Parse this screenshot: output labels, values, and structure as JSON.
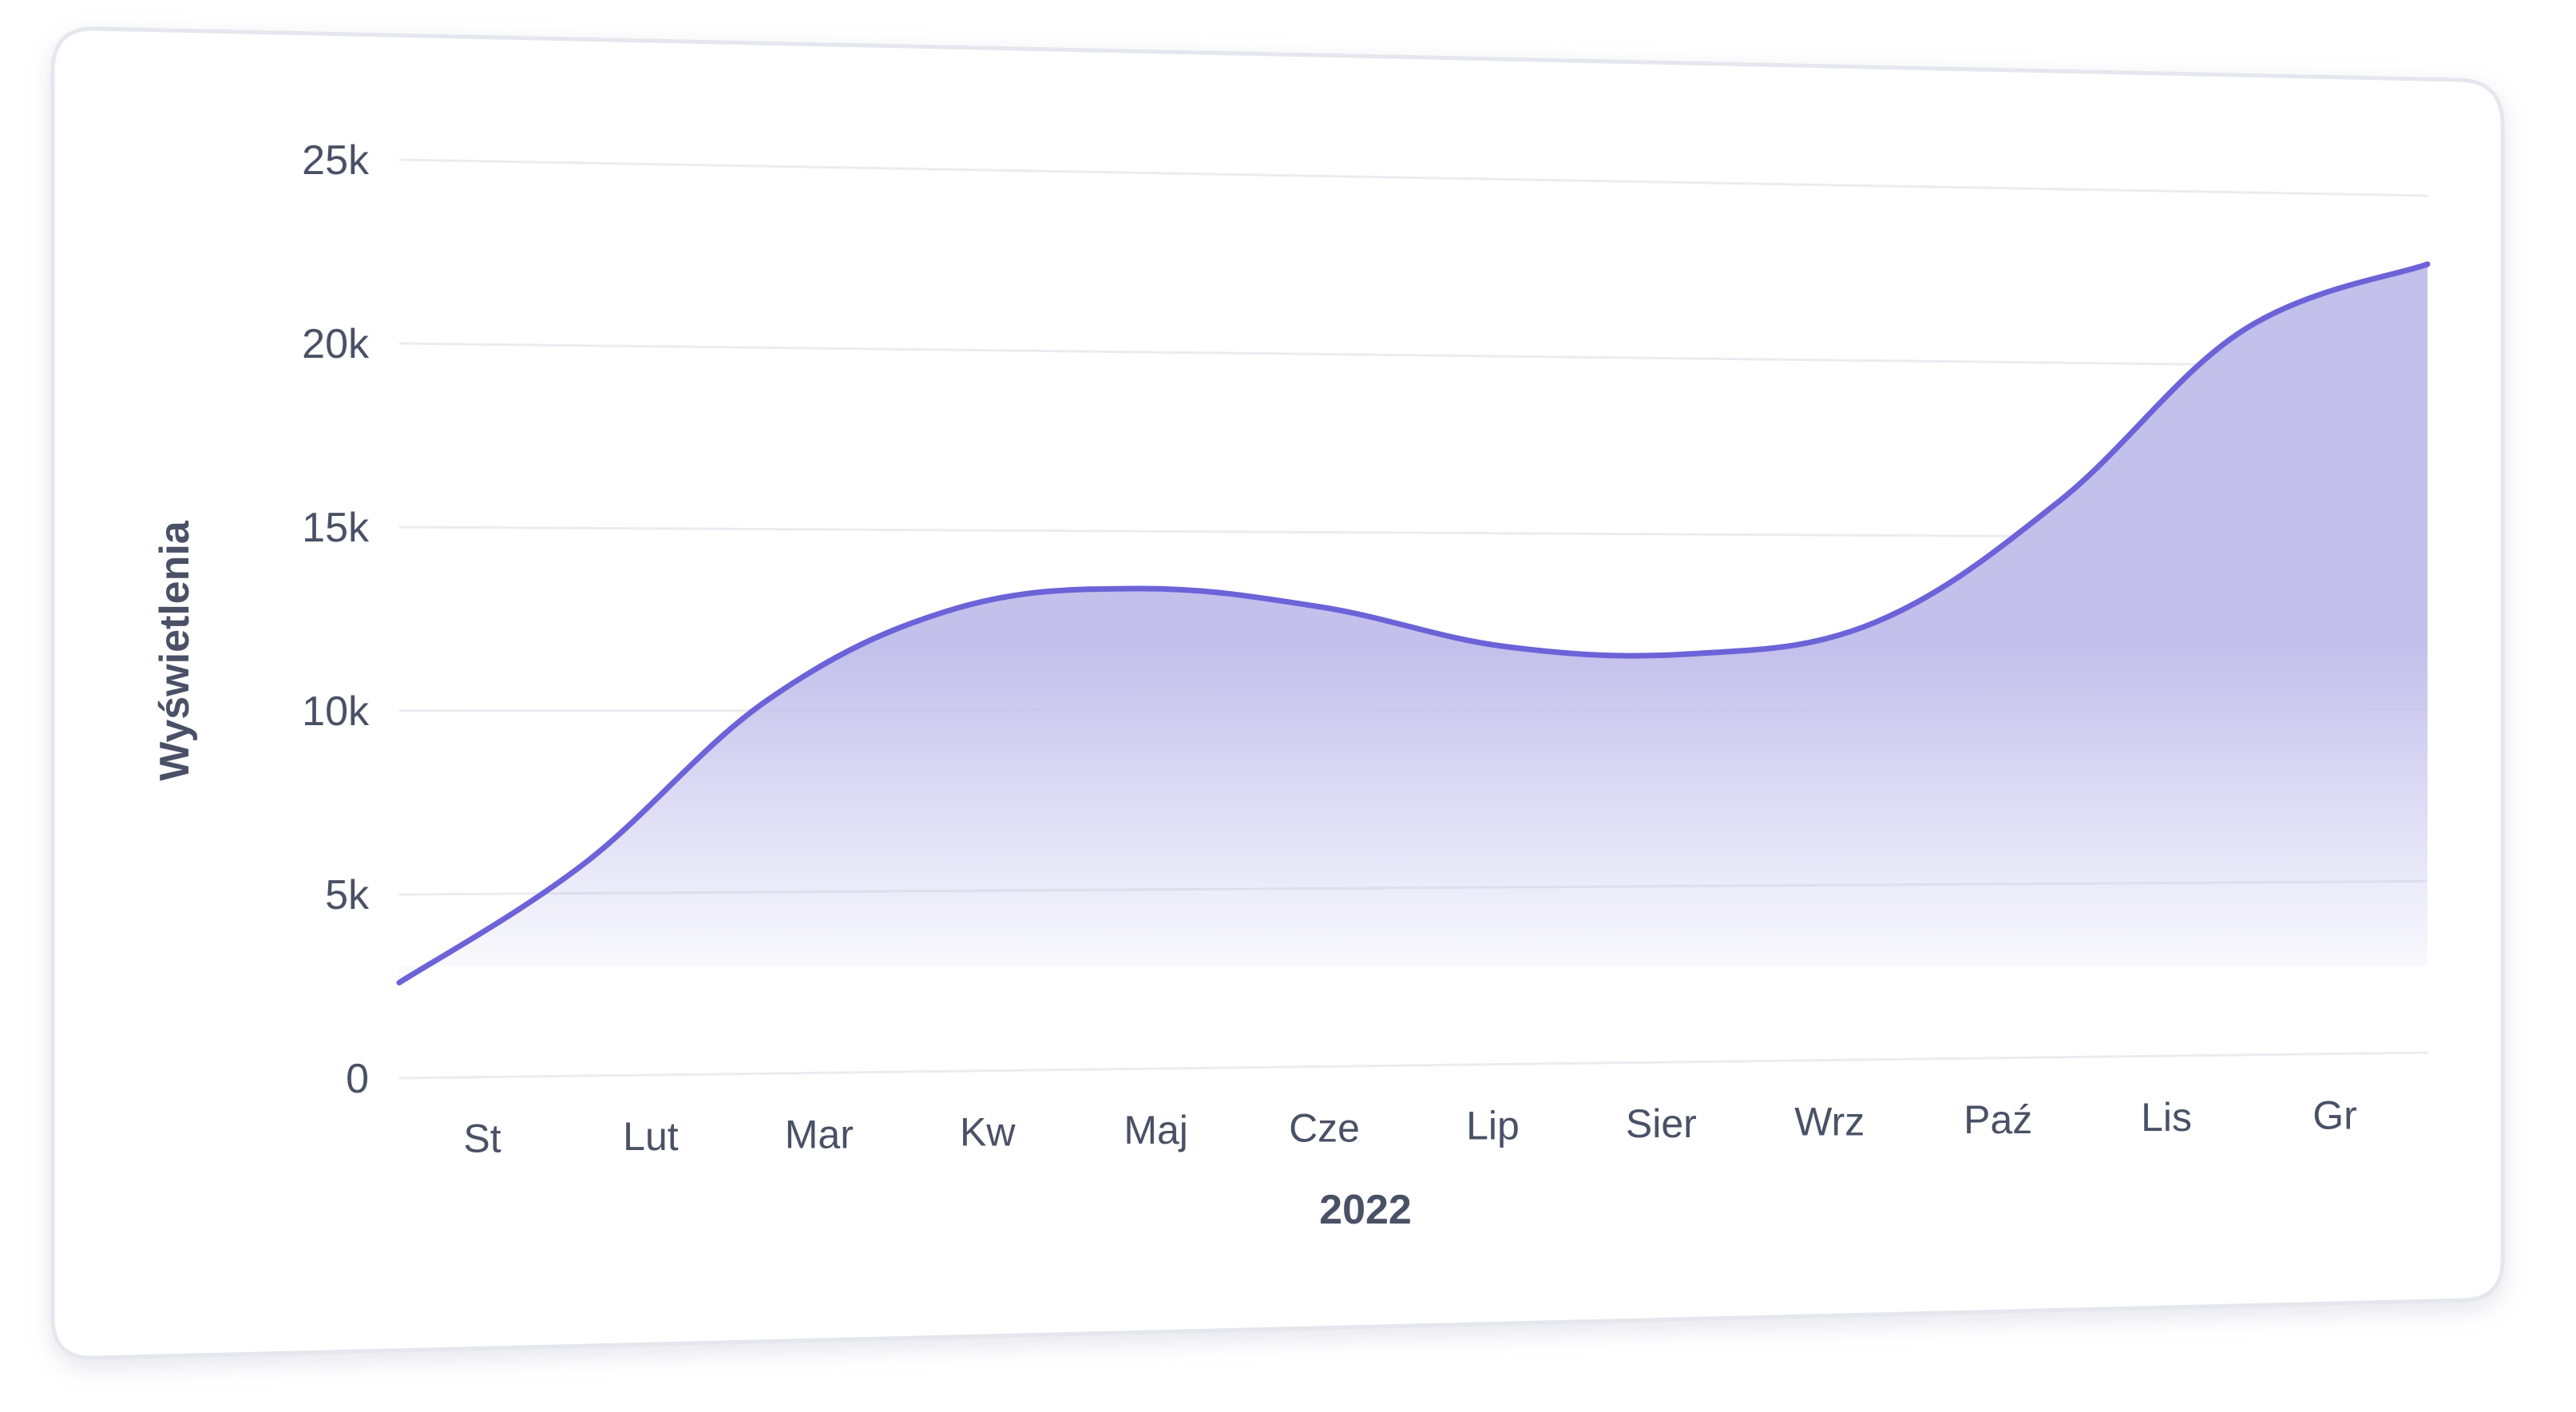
{
  "chart_data": {
    "type": "area",
    "categories": [
      "St",
      "Lut",
      "Mar",
      "Kw",
      "Maj",
      "Cze",
      "Lip",
      "Sier",
      "Wrz",
      "Paź",
      "Lis",
      "Gr"
    ],
    "values": [
      2600,
      5800,
      10300,
      12800,
      13400,
      12900,
      11800,
      11600,
      12500,
      16000,
      21000,
      23000
    ],
    "y_ticks": [
      0,
      5000,
      10000,
      15000,
      20000,
      25000
    ],
    "y_tick_labels": [
      "0",
      "5k",
      "10k",
      "15k",
      "20k",
      "25k"
    ],
    "ylim": [
      0,
      25000
    ],
    "xlabel": "2022",
    "ylabel": "Wyświetlenia",
    "title": "",
    "grid": true,
    "colors": {
      "line": "#6c63d8",
      "fill": "#c3c0ec",
      "grid": "#ebebf2",
      "text": "#4a5166",
      "card_border": "#e6e6ee"
    }
  }
}
